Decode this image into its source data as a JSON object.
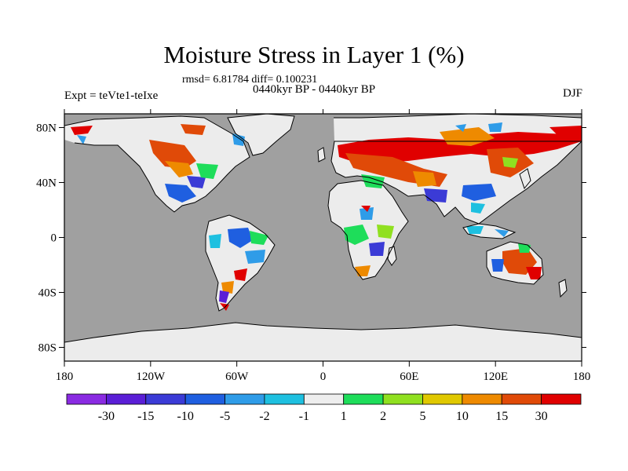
{
  "header": {
    "title": "Moisture Stress in Layer 1 (%)",
    "stats": "rmsd= 6.81784 diff= 0.100231",
    "period": "0440kyr BP - 0440kyr BP",
    "experiment": "Expt = teVte1-teIxe",
    "season": "DJF"
  },
  "map": {
    "projection": "cylindrical equidistant",
    "lon_range": [
      -180,
      180
    ],
    "lat_range": [
      -90,
      90
    ],
    "lon_ticks": [
      {
        "value": -180,
        "label": "180"
      },
      {
        "value": -120,
        "label": "120W"
      },
      {
        "value": -60,
        "label": "60W"
      },
      {
        "value": 0,
        "label": "0"
      },
      {
        "value": 60,
        "label": "60E"
      },
      {
        "value": 120,
        "label": "120E"
      },
      {
        "value": 180,
        "label": "180"
      }
    ],
    "lat_ticks": [
      {
        "value": 80,
        "label": "80N"
      },
      {
        "value": 40,
        "label": "40N"
      },
      {
        "value": 0,
        "label": "0"
      },
      {
        "value": -40,
        "label": "40S"
      },
      {
        "value": -80,
        "label": "80S"
      }
    ],
    "ocean_color": "#a0a0a0",
    "land_nochange_color": "#ececec"
  },
  "colorbar": {
    "colors": [
      "#8a2be2",
      "#5a1ed6",
      "#3b3bd6",
      "#1f5fe0",
      "#2f9ce8",
      "#1ec0e0",
      "#eeeeee",
      "#1edd5a",
      "#90e020",
      "#e0c800",
      "#ee8a00",
      "#e04a08",
      "#e00000"
    ],
    "labels": [
      "-30",
      "-15",
      "-10",
      "-5",
      "-2",
      "-1",
      "1",
      "2",
      "5",
      "10",
      "15",
      "30"
    ]
  }
}
